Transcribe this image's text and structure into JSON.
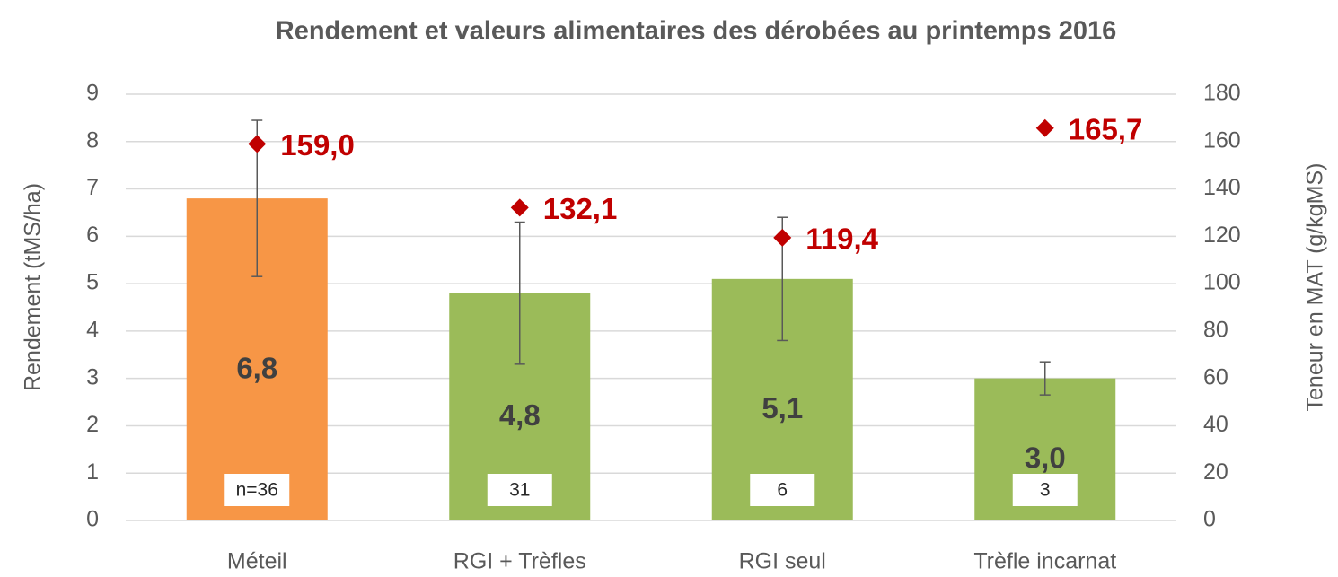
{
  "chart_data": {
    "type": "bar",
    "title": "Rendement et valeurs alimentaires des dérobées au printemps 2016",
    "y_label": "Rendement (tMS/ha)",
    "y2_label": "Teneur en MAT (g/kgMS)",
    "categories": [
      "Méteil",
      "RGI + Trèfles",
      "RGI seul",
      "Trèfle incarnat"
    ],
    "series": [
      {
        "type": "bar",
        "colors": [
          "#f79646",
          "#9bbb59",
          "#9bbb59",
          "#9bbb59"
        ],
        "values": [
          6.8,
          4.8,
          5.1,
          3.0
        ],
        "value_labels": [
          "6,8",
          "4,8",
          "5,1",
          "3,0"
        ],
        "errors": [
          1.65,
          1.5,
          1.3,
          0.35
        ],
        "count_labels": [
          "n=36",
          "31",
          "6",
          "3"
        ]
      },
      {
        "type": "scatter",
        "axis": "y2",
        "color": "#c00000",
        "values": [
          159.0,
          132.1,
          119.4,
          165.7
        ],
        "value_labels": [
          "159,0",
          "132,1",
          "119,4",
          "165,7"
        ]
      }
    ],
    "ylim": [
      0,
      9
    ],
    "yticks": [
      0,
      1,
      2,
      3,
      4,
      5,
      6,
      7,
      8,
      9
    ],
    "y2lim": [
      0,
      180
    ],
    "y2ticks": [
      0,
      20,
      40,
      60,
      80,
      100,
      120,
      140,
      160,
      180
    ],
    "grid": true
  }
}
